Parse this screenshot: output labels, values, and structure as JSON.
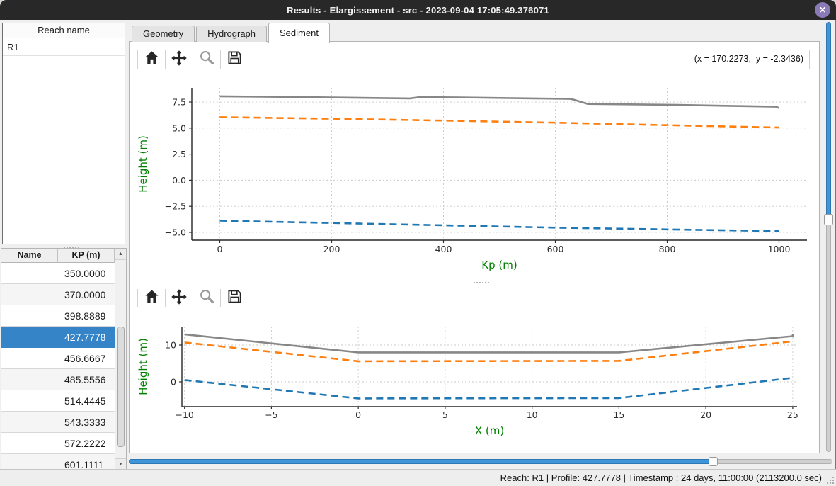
{
  "titlebar": {
    "title": "Results - Elargissement - src - 2023-09-04 17:05:49.376071",
    "close_glyph": "✕"
  },
  "sidebar": {
    "reach_list": {
      "header": "Reach name",
      "items": [
        "R1"
      ]
    },
    "profile_table": {
      "columns": [
        "Name",
        "KP (m)"
      ],
      "rows": [
        {
          "name": "",
          "kp": "350.0000"
        },
        {
          "name": "",
          "kp": "370.0000"
        },
        {
          "name": "",
          "kp": "398.8889"
        },
        {
          "name": "",
          "kp": "427.7778"
        },
        {
          "name": "",
          "kp": "456.6667"
        },
        {
          "name": "",
          "kp": "485.5556"
        },
        {
          "name": "",
          "kp": "514.4445"
        },
        {
          "name": "",
          "kp": "543.3333"
        },
        {
          "name": "",
          "kp": "572.2222"
        },
        {
          "name": "",
          "kp": "601.1111"
        }
      ],
      "selected_row_index": 3,
      "scrollbar": {
        "up_arrow": "▲",
        "down_arrow": "▼"
      }
    }
  },
  "tabs": [
    {
      "label": "Geometry",
      "active": false
    },
    {
      "label": "Hydrograph",
      "active": false
    },
    {
      "label": "Sediment",
      "active": true
    }
  ],
  "toolbar": {
    "buttons": [
      {
        "id": "home",
        "enabled": true
      },
      {
        "id": "pan",
        "enabled": true
      },
      {
        "id": "zoom",
        "enabled": false
      },
      {
        "id": "save",
        "enabled": true
      }
    ],
    "coordinates": "(x = 170.2273,  y = -2.3436)"
  },
  "chart_data": [
    {
      "type": "line",
      "title": "",
      "xlabel": "Kp (m)",
      "ylabel": "Height (m)",
      "xlim": [
        -50,
        1050
      ],
      "ylim": [
        -5.75,
        8.86
      ],
      "xticks": [
        0,
        200,
        400,
        600,
        800,
        1000
      ],
      "xtick_labels": [
        "0",
        "200",
        "400",
        "600",
        "800",
        "1000"
      ],
      "yticks": [
        7.5,
        5.0,
        2.5,
        0.0,
        -2.5,
        -5.0
      ],
      "ytick_labels": [
        "7.5",
        "5.0",
        "2.5",
        "0.0",
        "−2.5",
        "−5.0"
      ],
      "grid": true,
      "legend": null,
      "series": [
        {
          "name": "solid-gray-top-level",
          "color": "#878787",
          "dashed": false,
          "points": [
            [
              0,
              8.05
            ],
            [
              150,
              7.97
            ],
            [
              340,
              7.85
            ],
            [
              358,
              7.98
            ],
            [
              430,
              7.94
            ],
            [
              628,
              7.8
            ],
            [
              658,
              7.32
            ],
            [
              820,
              7.22
            ],
            [
              995,
              7.05
            ],
            [
              1000,
              6.92
            ]
          ]
        },
        {
          "name": "dashed-orange-mid-level",
          "color": "#ff7f0e",
          "dashed": true,
          "points": [
            [
              0,
              6.05
            ],
            [
              200,
              5.9
            ],
            [
              400,
              5.72
            ],
            [
              600,
              5.52
            ],
            [
              800,
              5.28
            ],
            [
              1000,
              5.05
            ]
          ]
        },
        {
          "name": "dashed-blue-bottom-level",
          "color": "#1f77b4",
          "dashed": true,
          "points": [
            [
              0,
              -3.88
            ],
            [
              200,
              -4.1
            ],
            [
              400,
              -4.32
            ],
            [
              600,
              -4.55
            ],
            [
              800,
              -4.72
            ],
            [
              1000,
              -4.88
            ]
          ]
        }
      ]
    },
    {
      "type": "line",
      "title": "",
      "xlabel": "X (m)",
      "ylabel": "Height (m)",
      "xlim": [
        -10.15,
        25.25
      ],
      "ylim": [
        -6.73,
        15.0
      ],
      "xticks": [
        -10,
        -5,
        0,
        5,
        10,
        15,
        20,
        25
      ],
      "xtick_labels": [
        "−10",
        "−5",
        "0",
        "5",
        "10",
        "15",
        "20",
        "25"
      ],
      "yticks": [
        10,
        0
      ],
      "ytick_labels": [
        "10",
        "0"
      ],
      "grid": true,
      "legend": null,
      "series": [
        {
          "name": "solid-gray-top-level",
          "color": "#878787",
          "dashed": false,
          "points": [
            [
              -10,
              12.9
            ],
            [
              0,
              8.0
            ],
            [
              15,
              8.0
            ],
            [
              25,
              12.4
            ],
            [
              25,
              13.0
            ]
          ]
        },
        {
          "name": "dashed-orange-mid-level",
          "color": "#ff7f0e",
          "dashed": true,
          "points": [
            [
              -10,
              10.7
            ],
            [
              0,
              5.6
            ],
            [
              15,
              5.7
            ],
            [
              25,
              11.0
            ]
          ]
        },
        {
          "name": "dashed-blue-bottom-level",
          "color": "#1f77b4",
          "dashed": true,
          "points": [
            [
              -10,
              0.5
            ],
            [
              0,
              -4.5
            ],
            [
              15,
              -4.4
            ],
            [
              25,
              1.1
            ]
          ]
        }
      ]
    }
  ],
  "bottom_slider": {
    "fraction": 0.83
  },
  "right_slider": {
    "fraction": 0.46
  },
  "statusbar": {
    "text": "Reach: R1 | Profile: 427.7778 | Timestamp : 24 days, 11:00:00 (2113200.0 sec)"
  },
  "colors": {
    "titlebar_bg": "#282828",
    "close_purple": "#8b7ab8",
    "selection_blue": "#3584c8",
    "slider_blue": "#3f95d8",
    "axis_label_green": "#008000",
    "line_gray": "#878787",
    "line_orange": "#ff7f0e",
    "line_blue": "#1f77b4"
  }
}
